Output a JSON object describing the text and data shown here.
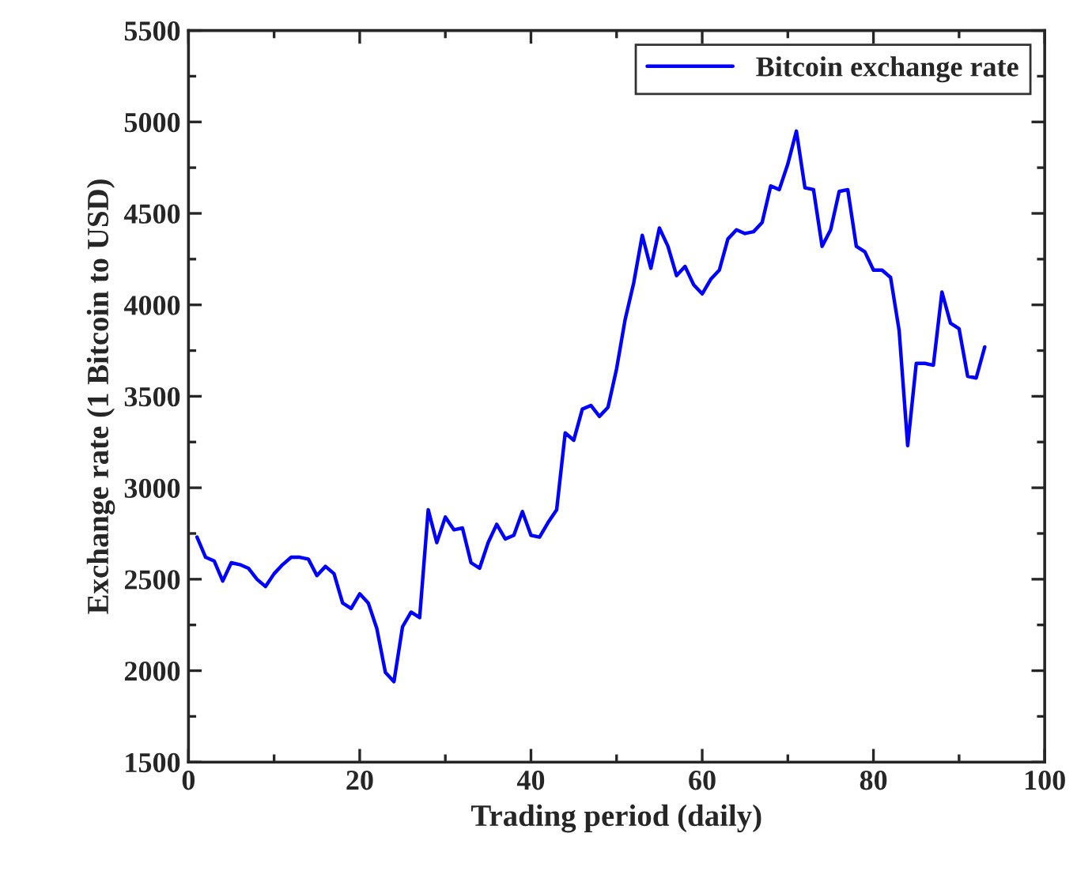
{
  "chart_data": {
    "type": "line",
    "xlabel": "Trading period (daily)",
    "ylabel": "Exchange rate (1 Bitcoin to USD)",
    "x": [
      1,
      2,
      3,
      4,
      5,
      6,
      7,
      8,
      9,
      10,
      11,
      12,
      13,
      14,
      15,
      16,
      17,
      18,
      19,
      20,
      21,
      22,
      23,
      24,
      25,
      26,
      27,
      28,
      29,
      30,
      31,
      32,
      33,
      34,
      35,
      36,
      37,
      38,
      39,
      40,
      41,
      42,
      43,
      44,
      45,
      46,
      47,
      48,
      49,
      50,
      51,
      52,
      53,
      54,
      55,
      56,
      57,
      58,
      59,
      60,
      61,
      62,
      63,
      64,
      65,
      66,
      67,
      68,
      69,
      70,
      71,
      72,
      73,
      74,
      75,
      76,
      77,
      78,
      79,
      80,
      81,
      82,
      83,
      84,
      85,
      86,
      87,
      88,
      89,
      90,
      91,
      92,
      93
    ],
    "series": [
      {
        "name": "Bitcoin exchange rate",
        "color": "#0000ff",
        "values": [
          2730,
          2620,
          2600,
          2490,
          2590,
          2580,
          2560,
          2500,
          2460,
          2530,
          2580,
          2620,
          2620,
          2610,
          2520,
          2570,
          2530,
          2370,
          2340,
          2420,
          2370,
          2230,
          1990,
          1940,
          2240,
          2320,
          2290,
          2880,
          2700,
          2840,
          2770,
          2780,
          2590,
          2560,
          2700,
          2800,
          2720,
          2740,
          2870,
          2740,
          2730,
          2810,
          2880,
          3300,
          3260,
          3430,
          3450,
          3390,
          3440,
          3650,
          3920,
          4120,
          4380,
          4200,
          4420,
          4320,
          4160,
          4210,
          4110,
          4060,
          4140,
          4190,
          4360,
          4410,
          4390,
          4400,
          4450,
          4650,
          4630,
          4770,
          4950,
          4640,
          4630,
          4320,
          4410,
          4620,
          4630,
          4320,
          4290,
          4190,
          4190,
          4150,
          3860,
          3230,
          3680,
          3680,
          3670,
          4070,
          3900,
          3870,
          3610,
          3600,
          3770
        ]
      }
    ],
    "xlim": [
      0,
      100
    ],
    "xticks": [
      0,
      20,
      40,
      60,
      80,
      100
    ],
    "ylim": [
      1500,
      5500
    ],
    "yticks": [
      1500,
      2000,
      2500,
      3000,
      3500,
      4000,
      4500,
      5000,
      5500
    ],
    "grid": false,
    "legend": "top right",
    "marker": "none",
    "line_style": "solid"
  }
}
